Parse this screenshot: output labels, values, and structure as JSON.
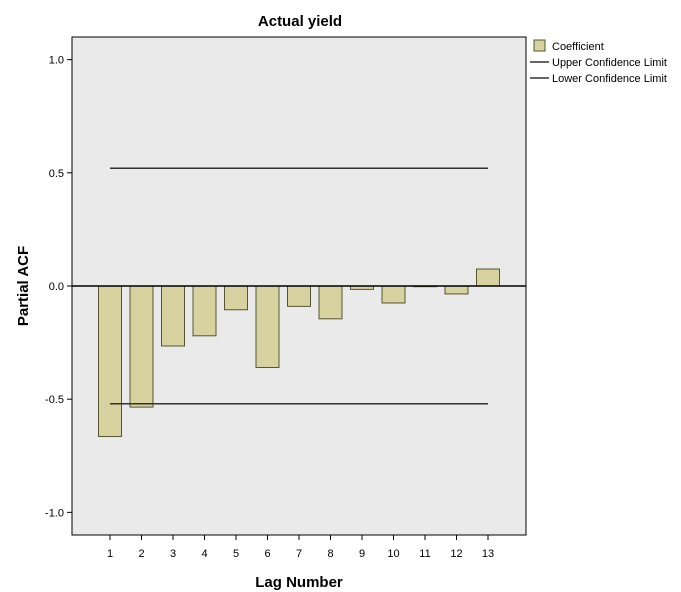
{
  "chart_data": {
    "type": "bar",
    "title": "Actual yield",
    "xlabel": "Lag Number",
    "ylabel": "Partial ACF",
    "ylim": [
      -1.1,
      1.1
    ],
    "yticks": [
      -1.0,
      -0.5,
      0.0,
      0.5,
      1.0
    ],
    "ytick_labels": [
      "-1.0",
      "-0.5",
      "0.0",
      "0.5",
      "1.0"
    ],
    "categories": [
      "1",
      "2",
      "3",
      "4",
      "5",
      "6",
      "7",
      "8",
      "9",
      "10",
      "11",
      "12",
      "13"
    ],
    "series": [
      {
        "name": "Coefficient",
        "values": [
          -0.665,
          -0.535,
          -0.265,
          -0.22,
          -0.105,
          -0.36,
          -0.09,
          -0.145,
          -0.015,
          -0.075,
          -0.003,
          -0.035,
          0.075
        ]
      }
    ],
    "confidence_limits": {
      "upper": {
        "name": "Upper Confidence Limit",
        "value": 0.52
      },
      "lower": {
        "name": "Lower Confidence Limit",
        "value": -0.52
      }
    },
    "legend_position": "right",
    "grid": false,
    "colors": {
      "bar_fill": "#d8d2a0",
      "bar_stroke": "#555533",
      "plot_background": "#eaeaea",
      "limit_line": "#333333"
    }
  }
}
